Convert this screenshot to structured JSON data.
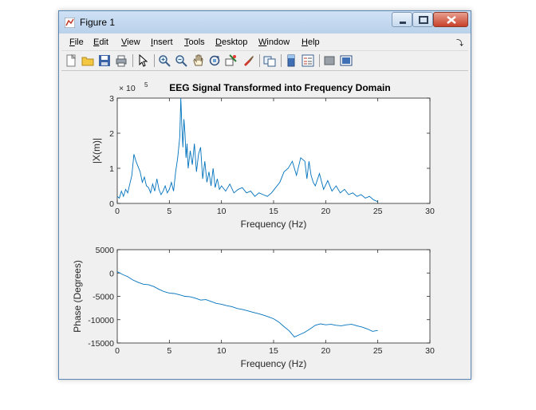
{
  "window": {
    "title": "Figure 1"
  },
  "menu": [
    "File",
    "Edit",
    "View",
    "Insert",
    "Tools",
    "Desktop",
    "Window",
    "Help"
  ],
  "toolbar_icons": [
    "new-figure-icon",
    "open-file-icon",
    "save-icon",
    "print-icon",
    "|",
    "pointer-icon",
    "|",
    "zoom-in-icon",
    "zoom-out-icon",
    "pan-icon",
    "rotate-3d-icon",
    "data-cursor-icon",
    "brush-icon",
    "|",
    "link-plot-icon",
    "|",
    "colorbar-icon",
    "legend-icon",
    "|",
    "hide-plot-tools-icon",
    "show-plot-tools-icon"
  ],
  "chart_data": [
    {
      "type": "line",
      "title": "EEG Signal Transformed into Frequency Domain",
      "xlabel": "Frequency (Hz)",
      "ylabel": "|X(m)|",
      "xlim": [
        0,
        30
      ],
      "ylim": [
        0,
        3
      ],
      "y_multiplier": "×10⁵",
      "exponent_label": "× 10",
      "exponent_power": "5",
      "xticks": [
        "0",
        "5",
        "10",
        "15",
        "20",
        "25",
        "30"
      ],
      "yticks": [
        "0",
        "1",
        "2",
        "3"
      ],
      "color": "#0072bd",
      "x": [
        0,
        0.2,
        0.4,
        0.6,
        0.8,
        1,
        1.2,
        1.4,
        1.6,
        1.8,
        2,
        2.2,
        2.4,
        2.6,
        2.8,
        3,
        3.2,
        3.4,
        3.6,
        3.8,
        4,
        4.2,
        4.4,
        4.6,
        4.8,
        5,
        5.2,
        5.4,
        5.6,
        5.8,
        6,
        6.1,
        6.2,
        6.3,
        6.4,
        6.5,
        6.6,
        6.7,
        6.8,
        7,
        7.2,
        7.4,
        7.6,
        7.8,
        8,
        8.2,
        8.4,
        8.6,
        8.8,
        9,
        9.2,
        9.4,
        9.6,
        9.8,
        10,
        10.4,
        10.8,
        11.2,
        11.6,
        12,
        12.4,
        12.8,
        13.2,
        13.6,
        14,
        14.4,
        14.8,
        15.2,
        15.6,
        16,
        16.4,
        16.8,
        17.2,
        17.6,
        18,
        18.2,
        18.4,
        18.6,
        18.8,
        19,
        19.4,
        19.8,
        20.2,
        20.6,
        21,
        21.4,
        21.8,
        22.2,
        22.6,
        23,
        23.4,
        23.8,
        24.2,
        24.6,
        25
      ],
      "y": [
        0.2,
        0.15,
        0.35,
        0.2,
        0.4,
        0.3,
        0.55,
        0.8,
        1.4,
        1.2,
        1.05,
        0.9,
        0.6,
        0.75,
        0.5,
        0.45,
        0.3,
        0.55,
        0.35,
        0.7,
        0.4,
        0.25,
        0.35,
        0.5,
        0.3,
        0.4,
        0.6,
        0.35,
        0.9,
        1.3,
        1.9,
        3.0,
        2.2,
        1.6,
        2.4,
        2.0,
        1.3,
        1.7,
        1.0,
        1.5,
        1.1,
        1.7,
        0.9,
        1.4,
        1.6,
        0.7,
        1.2,
        0.6,
        0.9,
        0.5,
        1.0,
        0.45,
        0.7,
        0.4,
        0.5,
        0.35,
        0.55,
        0.3,
        0.4,
        0.45,
        0.3,
        0.35,
        0.2,
        0.3,
        0.25,
        0.2,
        0.3,
        0.45,
        0.6,
        0.9,
        1.0,
        1.2,
        0.8,
        1.3,
        1.2,
        0.7,
        1.2,
        0.8,
        0.6,
        0.5,
        0.85,
        0.4,
        0.65,
        0.35,
        0.5,
        0.3,
        0.4,
        0.25,
        0.3,
        0.2,
        0.25,
        0.15,
        0.2,
        0.1,
        0.05
      ]
    },
    {
      "type": "line",
      "title": "",
      "xlabel": "Frequency (Hz)",
      "ylabel": "Phase (Degrees)",
      "xlim": [
        0,
        30
      ],
      "ylim": [
        -15000,
        5000
      ],
      "xticks": [
        "0",
        "5",
        "10",
        "15",
        "20",
        "25",
        "30"
      ],
      "yticks": [
        "5000",
        "0",
        "-5000",
        "-10000",
        "-15000"
      ],
      "color": "#0072bd",
      "x": [
        0,
        0.5,
        1,
        1.5,
        2,
        2.5,
        3,
        3.5,
        4,
        4.5,
        5,
        5.5,
        6,
        6.5,
        7,
        7.5,
        8,
        8.5,
        9,
        9.5,
        10,
        10.5,
        11,
        11.5,
        12,
        12.5,
        13,
        13.5,
        14,
        14.5,
        15,
        15.5,
        16,
        16.5,
        17,
        17.5,
        18,
        18.5,
        19,
        19.5,
        20,
        20.5,
        21,
        21.5,
        22,
        22.5,
        23,
        23.5,
        24,
        24.5,
        25
      ],
      "y": [
        300,
        -300,
        -800,
        -1500,
        -2000,
        -2400,
        -2500,
        -2900,
        -3500,
        -4000,
        -4300,
        -4400,
        -4700,
        -5000,
        -5100,
        -5400,
        -5800,
        -5700,
        -6100,
        -6500,
        -6700,
        -7000,
        -7200,
        -7600,
        -7800,
        -8100,
        -8400,
        -8700,
        -9000,
        -9400,
        -9800,
        -10500,
        -11500,
        -12400,
        -13700,
        -13200,
        -12700,
        -12000,
        -11200,
        -10900,
        -11100,
        -11000,
        -11200,
        -11300,
        -11100,
        -11000,
        -11300,
        -11600,
        -12000,
        -12500,
        -12300
      ]
    }
  ]
}
